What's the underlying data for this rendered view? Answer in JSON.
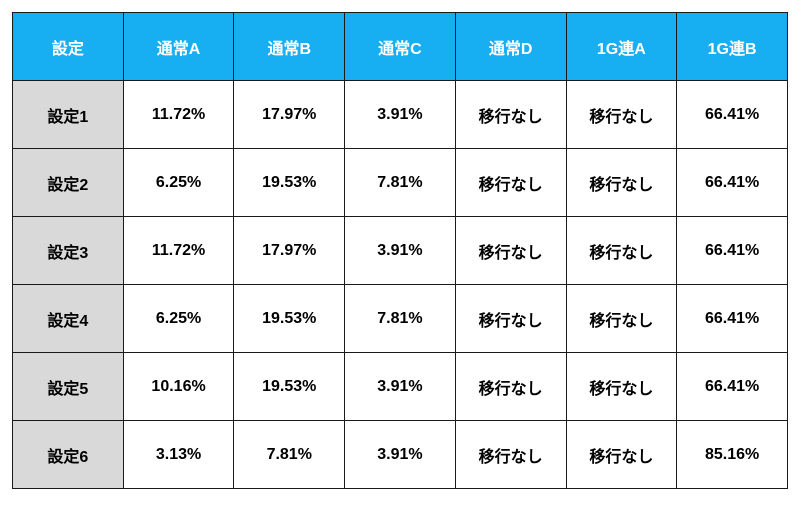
{
  "table": {
    "type": "table",
    "header_bg": "#18aef2",
    "header_color": "#ffffff",
    "rowlabel_bg": "#d9d9d9",
    "cell_bg": "#ffffff",
    "border_color": "#1a1a1a",
    "columns": [
      "設定",
      "通常A",
      "通常B",
      "通常C",
      "通常D",
      "1G連A",
      "1G連B"
    ],
    "rows": [
      {
        "label": "設定1",
        "cells": [
          "11.72%",
          "17.97%",
          "3.91%",
          "移行なし",
          "移行なし",
          "66.41%"
        ]
      },
      {
        "label": "設定2",
        "cells": [
          "6.25%",
          "19.53%",
          "7.81%",
          "移行なし",
          "移行なし",
          "66.41%"
        ]
      },
      {
        "label": "設定3",
        "cells": [
          "11.72%",
          "17.97%",
          "3.91%",
          "移行なし",
          "移行なし",
          "66.41%"
        ]
      },
      {
        "label": "設定4",
        "cells": [
          "6.25%",
          "19.53%",
          "7.81%",
          "移行なし",
          "移行なし",
          "66.41%"
        ]
      },
      {
        "label": "設定5",
        "cells": [
          "10.16%",
          "19.53%",
          "3.91%",
          "移行なし",
          "移行なし",
          "66.41%"
        ]
      },
      {
        "label": "設定6",
        "cells": [
          "3.13%",
          "7.81%",
          "3.91%",
          "移行なし",
          "移行なし",
          "85.16%"
        ]
      }
    ]
  }
}
